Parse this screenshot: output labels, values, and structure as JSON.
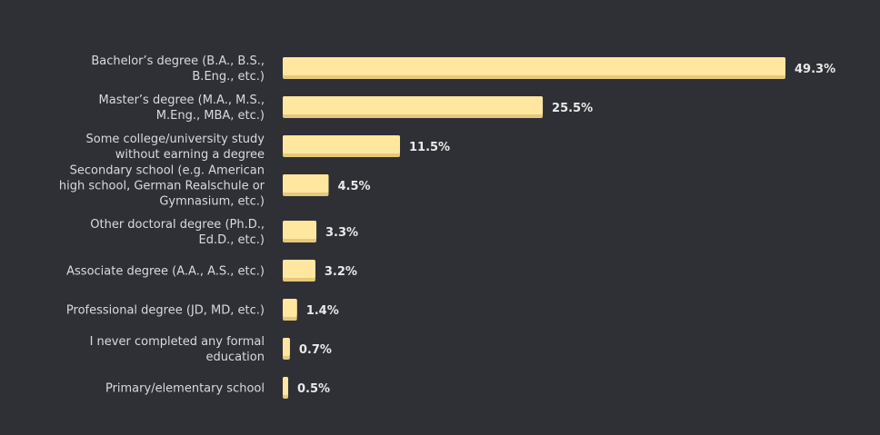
{
  "chart_data": {
    "type": "bar",
    "orientation": "horizontal",
    "categories": [
      [
        "Bachelor’s degree (B.A., B.S.,",
        "B.Eng., etc.)"
      ],
      [
        "Master’s degree (M.A., M.S.,",
        "M.Eng., MBA, etc.)"
      ],
      [
        "Some college/university study",
        "without earning a degree"
      ],
      [
        "Secondary school (e.g. American",
        "high school, German Realschule or",
        "Gymnasium, etc.)"
      ],
      [
        "Other doctoral degree (Ph.D.,",
        "Ed.D., etc.)"
      ],
      [
        "Associate degree (A.A., A.S., etc.)"
      ],
      [
        "Professional degree (JD, MD, etc.)"
      ],
      [
        "I never completed any formal",
        "education"
      ],
      [
        "Primary/elementary school"
      ]
    ],
    "values": [
      49.3,
      25.5,
      11.5,
      4.5,
      3.3,
      3.2,
      1.4,
      0.7,
      0.5
    ],
    "value_labels": [
      "49.3%",
      "25.5%",
      "11.5%",
      "4.5%",
      "3.3%",
      "3.2%",
      "1.4%",
      "0.7%",
      "0.5%"
    ],
    "unit": "%",
    "xlim": [
      0,
      49.3
    ],
    "grid": false,
    "legend": "none",
    "colors": {
      "background": "#2f3035",
      "bar": "#ffe7a0",
      "bar_shadow": "#e5c97a",
      "category_text": "#d9dadc",
      "value_text": "#e9e9ea"
    }
  }
}
